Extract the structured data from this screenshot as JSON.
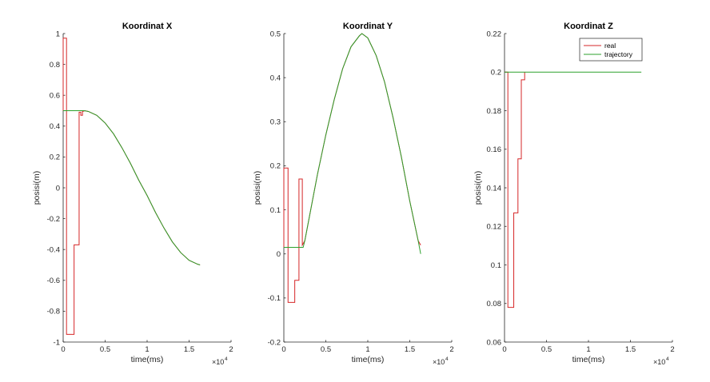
{
  "chart_data": [
    {
      "type": "line",
      "title": "Koordinat X",
      "xlabel": "time(ms)",
      "ylabel": "posisi(m)",
      "x_exponent": "4",
      "xlim": [
        0,
        20000
      ],
      "ylim": [
        -1,
        1
      ],
      "xticks": [
        0,
        5000,
        10000,
        15000,
        20000
      ],
      "xtick_labels": [
        "0",
        "0.5",
        "1",
        "1.5",
        "2"
      ],
      "yticks": [
        -1,
        -0.8,
        -0.6,
        -0.4,
        -0.2,
        0,
        0.2,
        0.4,
        0.6,
        0.8,
        1
      ],
      "ytick_labels": [
        "-1",
        "-0.8",
        "-0.6",
        "-0.4",
        "-0.2",
        "0",
        "0.2",
        "0.4",
        "0.6",
        "0.8",
        "1"
      ],
      "series": [
        {
          "name": "real",
          "color": "#d62728",
          "x": [
            0,
            0,
            400,
            400,
            1300,
            1300,
            1900,
            1900,
            2100,
            2100,
            2300,
            2300,
            2600,
            3000,
            4000,
            5000,
            6000,
            7000,
            8000,
            9000,
            10000,
            11000,
            12000,
            13000,
            14000,
            15000,
            16000,
            16300
          ],
          "y": [
            0.5,
            0.97,
            0.97,
            -0.95,
            -0.95,
            -0.37,
            -0.37,
            0.49,
            0.49,
            0.47,
            0.47,
            0.495,
            0.5,
            0.495,
            0.47,
            0.42,
            0.35,
            0.26,
            0.16,
            0.05,
            -0.05,
            -0.16,
            -0.26,
            -0.35,
            -0.42,
            -0.47,
            -0.495,
            -0.5
          ]
        },
        {
          "name": "trajectory",
          "color": "#2ca02c",
          "x": [
            0,
            2000,
            2500,
            3000,
            4000,
            5000,
            6000,
            7000,
            8000,
            9000,
            10000,
            11000,
            12000,
            13000,
            14000,
            15000,
            16000,
            16300
          ],
          "y": [
            0.5,
            0.5,
            0.5,
            0.495,
            0.47,
            0.42,
            0.35,
            0.26,
            0.16,
            0.05,
            -0.05,
            -0.16,
            -0.26,
            -0.35,
            -0.42,
            -0.47,
            -0.495,
            -0.5
          ]
        }
      ]
    },
    {
      "type": "line",
      "title": "Koordinat Y",
      "xlabel": "time(ms)",
      "ylabel": "posisi(m)",
      "x_exponent": "4",
      "xlim": [
        0,
        20000
      ],
      "ylim": [
        -0.2,
        0.5
      ],
      "xticks": [
        0,
        5000,
        10000,
        15000,
        20000
      ],
      "xtick_labels": [
        "0",
        "0.5",
        "1",
        "1.5",
        "2"
      ],
      "yticks": [
        -0.2,
        -0.1,
        0,
        0.1,
        0.2,
        0.3,
        0.4,
        0.5
      ],
      "ytick_labels": [
        "-0.2",
        "-0.1",
        "0",
        "0.1",
        "0.2",
        "0.3",
        "0.4",
        "0.5"
      ],
      "series": [
        {
          "name": "real",
          "color": "#d62728",
          "x": [
            0,
            0,
            500,
            500,
            1300,
            1300,
            1800,
            1800,
            2200,
            2200,
            2500,
            3000,
            4000,
            5000,
            6000,
            7000,
            8000,
            9000,
            9300,
            10000,
            11000,
            12000,
            13000,
            14000,
            15000,
            16000,
            16300
          ],
          "y": [
            0.015,
            0.195,
            0.195,
            -0.11,
            -0.11,
            -0.06,
            -0.06,
            0.17,
            0.17,
            0.02,
            0.03,
            0.08,
            0.18,
            0.27,
            0.35,
            0.42,
            0.47,
            0.495,
            0.5,
            0.49,
            0.45,
            0.39,
            0.31,
            0.22,
            0.12,
            0.03,
            0.02
          ]
        },
        {
          "name": "trajectory",
          "color": "#2ca02c",
          "x": [
            0,
            2300,
            2500,
            3000,
            4000,
            5000,
            6000,
            7000,
            8000,
            9000,
            9300,
            10000,
            11000,
            12000,
            13000,
            14000,
            15000,
            16000,
            16300
          ],
          "y": [
            0.015,
            0.015,
            0.03,
            0.08,
            0.18,
            0.27,
            0.35,
            0.42,
            0.47,
            0.495,
            0.5,
            0.49,
            0.45,
            0.39,
            0.31,
            0.22,
            0.12,
            0.03,
            0.0
          ]
        }
      ]
    },
    {
      "type": "line",
      "title": "Koordinat Z",
      "xlabel": "time(ms)",
      "ylabel": "posisi(m)",
      "x_exponent": "4",
      "xlim": [
        0,
        20000
      ],
      "ylim": [
        0.06,
        0.22
      ],
      "xticks": [
        0,
        5000,
        10000,
        15000,
        20000
      ],
      "xtick_labels": [
        "0",
        "0.5",
        "1",
        "1.5",
        "2"
      ],
      "yticks": [
        0.06,
        0.08,
        0.1,
        0.12,
        0.14,
        0.16,
        0.18,
        0.2,
        0.22
      ],
      "ytick_labels": [
        "0.06",
        "0.08",
        "0.1",
        "0.12",
        "0.14",
        "0.16",
        "0.18",
        "0.2",
        "0.22"
      ],
      "legend": {
        "position": "top-right",
        "entries": [
          "real",
          "trajectory"
        ]
      },
      "series": [
        {
          "name": "real",
          "color": "#d62728",
          "x": [
            0,
            0,
            400,
            400,
            1100,
            1100,
            1600,
            1600,
            2000,
            2000,
            2400,
            2400
          ],
          "y": [
            0.2,
            0.2,
            0.2,
            0.078,
            0.078,
            0.127,
            0.127,
            0.155,
            0.155,
            0.196,
            0.196,
            0.2
          ]
        },
        {
          "name": "trajectory",
          "color": "#2ca02c",
          "x": [
            0,
            16300
          ],
          "y": [
            0.2,
            0.2
          ]
        }
      ]
    }
  ]
}
